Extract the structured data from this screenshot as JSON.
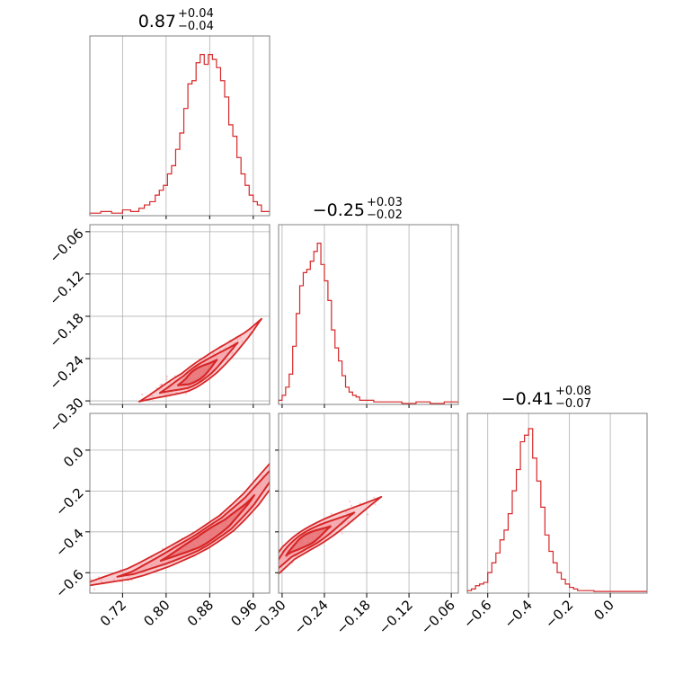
{
  "chart_data": {
    "type": "corner",
    "color": "#d62728",
    "fill_color_light": "#f4a3a8",
    "grid": true,
    "parameters": [
      {
        "title": {
          "median": "0.87",
          "plus": "+0.04",
          "minus": "−0.04"
        },
        "range": [
          0.66,
          0.99
        ],
        "ticks": [
          0.72,
          0.8,
          0.88,
          0.96
        ],
        "tick_labels": [
          "0.72",
          "0.80",
          "0.88",
          "0.96"
        ],
        "hist_bins": [
          0.66,
          0.68,
          0.7,
          0.72,
          0.735,
          0.75,
          0.76,
          0.77,
          0.78,
          0.7875,
          0.795,
          0.8025,
          0.81,
          0.8175,
          0.825,
          0.8325,
          0.84,
          0.8475,
          0.855,
          0.8625,
          0.87,
          0.8775,
          0.885,
          0.8925,
          0.9,
          0.9075,
          0.915,
          0.9225,
          0.93,
          0.9375,
          0.945,
          0.9525,
          0.96,
          0.9675,
          0.975,
          0.99
        ],
        "hist_values": [
          0.01,
          0.02,
          0.01,
          0.03,
          0.02,
          0.04,
          0.06,
          0.08,
          0.12,
          0.15,
          0.18,
          0.25,
          0.3,
          0.4,
          0.5,
          0.65,
          0.8,
          0.82,
          0.93,
          0.98,
          0.92,
          0.98,
          0.95,
          0.9,
          0.82,
          0.72,
          0.55,
          0.48,
          0.35,
          0.25,
          0.18,
          0.12,
          0.08,
          0.06,
          0.02
        ]
      },
      {
        "title": {
          "median": "−0.25",
          "plus": "+0.03",
          "minus": "−0.02"
        },
        "range": [
          -0.305,
          -0.05
        ],
        "ticks": [
          -0.3,
          -0.24,
          -0.18,
          -0.12,
          -0.06
        ],
        "tick_labels": [
          "−0.30",
          "−0.24",
          "−0.18",
          "−0.12",
          "−0.06"
        ],
        "hist_bins": [
          -0.305,
          -0.3,
          -0.295,
          -0.29,
          -0.285,
          -0.28,
          -0.275,
          -0.27,
          -0.265,
          -0.26,
          -0.255,
          -0.25,
          -0.245,
          -0.24,
          -0.235,
          -0.23,
          -0.225,
          -0.22,
          -0.215,
          -0.21,
          -0.205,
          -0.2,
          -0.195,
          -0.19,
          -0.17,
          -0.15,
          -0.13,
          -0.11,
          -0.09,
          -0.07,
          -0.05
        ],
        "hist_values": [
          0.02,
          0.05,
          0.1,
          0.18,
          0.35,
          0.55,
          0.72,
          0.8,
          0.82,
          0.87,
          0.93,
          0.98,
          0.85,
          0.75,
          0.63,
          0.45,
          0.34,
          0.26,
          0.17,
          0.1,
          0.07,
          0.05,
          0.04,
          0.02,
          0.01,
          0.01,
          0.0,
          0.01,
          0.0,
          0.01
        ]
      },
      {
        "title": {
          "median": "−0.41",
          "plus": "+0.08",
          "minus": "−0.07"
        },
        "range": [
          -0.7,
          0.18
        ],
        "ticks": [
          -0.6,
          -0.4,
          -0.2,
          0.0
        ],
        "tick_labels": [
          "−0.6",
          "−0.4",
          "−0.2",
          "0.0"
        ],
        "hist_bins": [
          -0.7,
          -0.68,
          -0.66,
          -0.64,
          -0.62,
          -0.6,
          -0.58,
          -0.56,
          -0.54,
          -0.52,
          -0.5,
          -0.48,
          -0.46,
          -0.44,
          -0.42,
          -0.4,
          -0.38,
          -0.36,
          -0.34,
          -0.32,
          -0.3,
          -0.28,
          -0.26,
          -0.24,
          -0.22,
          -0.2,
          -0.18,
          -0.16,
          -0.12,
          -0.08,
          -0.04,
          0.0,
          0.04,
          0.1,
          0.18
        ],
        "hist_values": [
          0.01,
          0.02,
          0.04,
          0.05,
          0.06,
          0.12,
          0.18,
          0.24,
          0.32,
          0.38,
          0.48,
          0.62,
          0.75,
          0.92,
          0.96,
          1.0,
          0.82,
          0.68,
          0.52,
          0.35,
          0.25,
          0.18,
          0.12,
          0.08,
          0.05,
          0.03,
          0.02,
          0.01,
          0.01,
          0.005,
          0.005,
          0.005,
          0.005,
          0.005
        ]
      }
    ],
    "pairs": [
      {
        "x_param": 0,
        "y_param": 1,
        "curve": [
          [
            0.8,
            -0.285
          ],
          [
            0.84,
            -0.272
          ],
          [
            0.88,
            -0.25
          ],
          [
            0.92,
            -0.225
          ],
          [
            0.95,
            -0.205
          ],
          [
            0.97,
            -0.188
          ],
          [
            0.985,
            -0.175
          ]
        ],
        "mode": [
          0.855,
          -0.256
        ],
        "spread": [
          0.025,
          0.016
        ],
        "scatter_extent": [
          [
            0.72,
            -0.295
          ],
          [
            0.99,
            -0.1
          ]
        ]
      },
      {
        "x_param": 0,
        "y_param": 2,
        "curve": [
          [
            0.68,
            -0.64
          ],
          [
            0.74,
            -0.6
          ],
          [
            0.8,
            -0.53
          ],
          [
            0.86,
            -0.45
          ],
          [
            0.91,
            -0.36
          ],
          [
            0.95,
            -0.26
          ],
          [
            0.98,
            -0.16
          ]
        ],
        "mode": [
          0.87,
          -0.41
        ],
        "spread": [
          0.06,
          0.05
        ],
        "scatter_extent": [
          [
            0.66,
            -0.66
          ],
          [
            0.99,
            -0.12
          ]
        ]
      },
      {
        "x_param": 1,
        "y_param": 2,
        "curve": [
          [
            -0.305,
            -0.56
          ],
          [
            -0.29,
            -0.5
          ],
          [
            -0.27,
            -0.45
          ],
          [
            -0.25,
            -0.41
          ],
          [
            -0.22,
            -0.35
          ],
          [
            -0.19,
            -0.29
          ],
          [
            -0.16,
            -0.23
          ]
        ],
        "mode": [
          -0.265,
          -0.43
        ],
        "spread": [
          0.022,
          0.055
        ],
        "scatter_extent": [
          [
            -0.305,
            -0.66
          ],
          [
            -0.11,
            -0.05
          ]
        ]
      }
    ]
  }
}
